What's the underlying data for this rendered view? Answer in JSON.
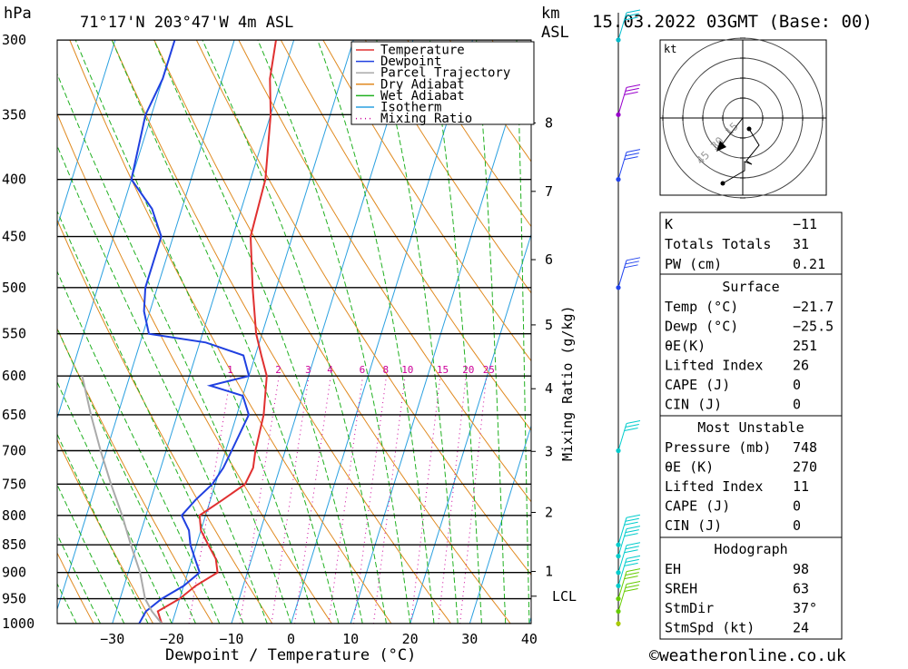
{
  "header": {
    "pressure_unit": "hPa",
    "location": "71°17'N  203°47'W  4m  ASL",
    "km_label": "km",
    "asl_label": "ASL",
    "datetime": "15.03.2022  03GMT  (Base: 00)"
  },
  "chart_data": {
    "type": "line",
    "xlabel": "Dewpoint / Temperature (°C)",
    "ylabel_mixing": "Mixing Ratio (g/kg)",
    "pressure_levels": [
      300,
      350,
      400,
      450,
      500,
      550,
      600,
      650,
      700,
      750,
      800,
      850,
      900,
      950,
      1000
    ],
    "x_ticks": [
      -30,
      -20,
      -10,
      0,
      10,
      20,
      30,
      40
    ],
    "xlim": [
      -40,
      40
    ],
    "ylim_hPa": [
      1000,
      300
    ],
    "km_ticks": [
      1,
      2,
      3,
      4,
      5,
      6,
      7,
      8
    ],
    "lcl_label": "LCL",
    "lcl_pressure": 945,
    "mixing_ratio_labels": [
      1,
      2,
      3,
      4,
      6,
      8,
      10,
      15,
      20,
      25
    ],
    "legend": [
      "Temperature",
      "Dewpoint",
      "Parcel Trajectory",
      "Dry Adiabat",
      "Wet Adiabat",
      "Isotherm",
      "Mixing Ratio"
    ],
    "series": [
      {
        "name": "Temperature",
        "color": "#e03030",
        "points": [
          [
            1000,
            -21.7
          ],
          [
            975,
            -23
          ],
          [
            950,
            -20
          ],
          [
            925,
            -18
          ],
          [
            900,
            -15
          ],
          [
            875,
            -16
          ],
          [
            850,
            -18
          ],
          [
            825,
            -20
          ],
          [
            800,
            -21
          ],
          [
            775,
            -18
          ],
          [
            750,
            -15
          ],
          [
            725,
            -14.5
          ],
          [
            700,
            -15
          ],
          [
            650,
            -15.5
          ],
          [
            600,
            -17
          ],
          [
            575,
            -19
          ],
          [
            550,
            -21
          ],
          [
            500,
            -24
          ],
          [
            450,
            -27
          ],
          [
            400,
            -27.5
          ],
          [
            350,
            -30
          ],
          [
            325,
            -32
          ],
          [
            300,
            -33
          ]
        ]
      },
      {
        "name": "Dewpoint",
        "color": "#2040e0",
        "points": [
          [
            1000,
            -25.5
          ],
          [
            975,
            -25
          ],
          [
            950,
            -23
          ],
          [
            925,
            -20
          ],
          [
            900,
            -18
          ],
          [
            875,
            -19.5
          ],
          [
            850,
            -21
          ],
          [
            825,
            -22
          ],
          [
            800,
            -24
          ],
          [
            775,
            -22.5
          ],
          [
            750,
            -20.5
          ],
          [
            725,
            -19.5
          ],
          [
            700,
            -19
          ],
          [
            650,
            -18
          ],
          [
            625,
            -20
          ],
          [
            612,
            -26
          ],
          [
            600,
            -20
          ],
          [
            575,
            -22
          ],
          [
            560,
            -29
          ],
          [
            550,
            -39
          ],
          [
            525,
            -41
          ],
          [
            500,
            -42
          ],
          [
            450,
            -42
          ],
          [
            425,
            -45
          ],
          [
            400,
            -50
          ],
          [
            350,
            -51
          ],
          [
            325,
            -50
          ],
          [
            300,
            -50
          ]
        ]
      },
      {
        "name": "Parcel Trajectory",
        "color": "#aaaaaa",
        "points": [
          [
            1000,
            -21.7
          ],
          [
            975,
            -24
          ],
          [
            950,
            -25.8
          ],
          [
            900,
            -28
          ],
          [
            850,
            -31
          ],
          [
            800,
            -34
          ],
          [
            750,
            -37.5
          ],
          [
            700,
            -41
          ],
          [
            650,
            -44.5
          ],
          [
            600,
            -48
          ]
        ]
      }
    ]
  },
  "wind_profile": {
    "levels_hPa": [
      300,
      350,
      400,
      500,
      700,
      850,
      870,
      900,
      925,
      950,
      975,
      1000
    ],
    "colors": [
      "#00bbcc",
      "#9900cc",
      "#2244ee",
      "#2244ee",
      "#00cccc",
      "#00cccc",
      "#00cccc",
      "#00cccc",
      "#00cccc",
      "#66cc00",
      "#66cc00",
      "#aacc00"
    ]
  },
  "hodograph": {
    "unit": "kt",
    "ring_labels": [
      "15",
      "30",
      "45"
    ]
  },
  "indices": {
    "k": {
      "label": "K",
      "value": "-11"
    },
    "tt": {
      "label": "Totals Totals",
      "value": "31"
    },
    "pw": {
      "label": "PW (cm)",
      "value": "0.21"
    }
  },
  "surface": {
    "title": "Surface",
    "rows": [
      {
        "label": "Temp (°C)",
        "value": "-21.7"
      },
      {
        "label": "Dewp (°C)",
        "value": "-25.5"
      },
      {
        "label": "θE(K)",
        "value": "251"
      },
      {
        "label": "Lifted Index",
        "value": "26"
      },
      {
        "label": "CAPE (J)",
        "value": "0"
      },
      {
        "label": "CIN (J)",
        "value": "0"
      }
    ]
  },
  "most_unstable": {
    "title": "Most Unstable",
    "rows": [
      {
        "label": "Pressure (mb)",
        "value": "748"
      },
      {
        "label": "θE (K)",
        "value": "270"
      },
      {
        "label": "Lifted Index",
        "value": "11"
      },
      {
        "label": "CAPE (J)",
        "value": "0"
      },
      {
        "label": "CIN (J)",
        "value": "0"
      }
    ]
  },
  "hodograph_table": {
    "title": "Hodograph",
    "rows": [
      {
        "label": "EH",
        "value": "98"
      },
      {
        "label": "SREH",
        "value": "63"
      },
      {
        "label": "StmDir",
        "value": "37°"
      },
      {
        "label": "StmSpd (kt)",
        "value": "24"
      }
    ]
  },
  "footer": {
    "copyright": "©weatheronline.co.uk"
  }
}
